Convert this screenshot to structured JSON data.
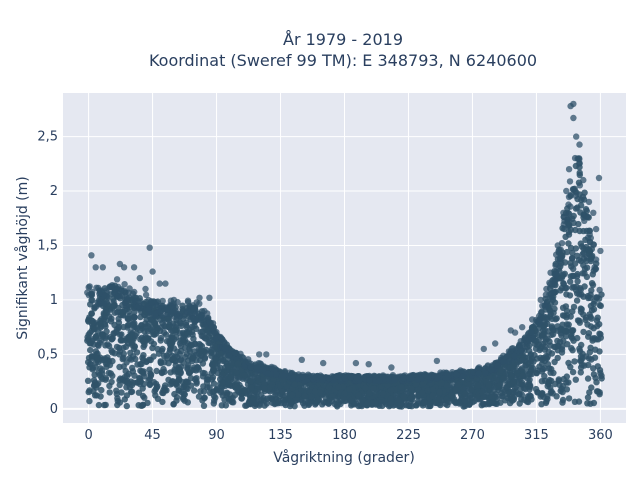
{
  "title_line1": "År 1979 - 2019",
  "title_line2": "Koordinat (Sweref 99 TM): E 348793, N 6240600",
  "colors": {
    "plot_bg": "#e5e8f1",
    "grid": "#ffffff",
    "marker": "#2f5269",
    "text": "#2a3f5f"
  },
  "chart_data": {
    "type": "scatter",
    "title": "År 1979 - 2019 — Koordinat (Sweref 99 TM): E 348793, N 6240600",
    "xlabel": "Vågriktning (grader)",
    "ylabel": "Signifikant våghöjd (m)",
    "xlim": [
      -18,
      378
    ],
    "ylim": [
      -0.13,
      2.9
    ],
    "xticks": [
      0,
      45,
      90,
      135,
      180,
      225,
      270,
      315,
      360
    ],
    "xtick_labels": [
      "0",
      "45",
      "90",
      "135",
      "180",
      "225",
      "270",
      "315",
      "360"
    ],
    "yticks": [
      0,
      0.5,
      1,
      1.5,
      2,
      2.5
    ],
    "ytick_labels": [
      "0",
      "0,5",
      "1",
      "1,5",
      "2",
      "2,5"
    ],
    "grid": true,
    "legend": "none",
    "envelope": {
      "direction_deg": [
        0,
        10,
        20,
        30,
        45,
        60,
        75,
        85,
        90,
        100,
        110,
        120,
        135,
        150,
        180,
        200,
        225,
        250,
        270,
        285,
        300,
        310,
        320,
        330,
        335,
        340,
        345,
        350,
        355,
        360
      ],
      "max_height_m": [
        1.1,
        1.1,
        1.15,
        1.05,
        1.0,
        0.95,
        0.95,
        0.85,
        0.7,
        0.55,
        0.45,
        0.4,
        0.35,
        0.3,
        0.3,
        0.3,
        0.3,
        0.32,
        0.35,
        0.4,
        0.55,
        0.7,
        0.95,
        1.4,
        1.8,
        2.2,
        2.35,
        1.9,
        1.55,
        1.1
      ],
      "min_height_m": 0.02
    },
    "outliers": [
      {
        "x": 2,
        "y": 1.41
      },
      {
        "x": 5,
        "y": 1.3
      },
      {
        "x": 10,
        "y": 1.3
      },
      {
        "x": 22,
        "y": 1.33
      },
      {
        "x": 25,
        "y": 1.3
      },
      {
        "x": 32,
        "y": 1.3
      },
      {
        "x": 36,
        "y": 1.2
      },
      {
        "x": 40,
        "y": 1.1
      },
      {
        "x": 43,
        "y": 1.48
      },
      {
        "x": 45,
        "y": 1.26
      },
      {
        "x": 50,
        "y": 1.15
      },
      {
        "x": 54,
        "y": 1.15
      },
      {
        "x": 60,
        "y": 1.0
      },
      {
        "x": 70,
        "y": 0.98
      },
      {
        "x": 78,
        "y": 1.02
      },
      {
        "x": 85,
        "y": 1.02
      },
      {
        "x": 120,
        "y": 0.5
      },
      {
        "x": 125,
        "y": 0.5
      },
      {
        "x": 150,
        "y": 0.45
      },
      {
        "x": 165,
        "y": 0.42
      },
      {
        "x": 188,
        "y": 0.42
      },
      {
        "x": 197,
        "y": 0.41
      },
      {
        "x": 213,
        "y": 0.38
      },
      {
        "x": 245,
        "y": 0.44
      },
      {
        "x": 278,
        "y": 0.55
      },
      {
        "x": 286,
        "y": 0.6
      },
      {
        "x": 297,
        "y": 0.72
      },
      {
        "x": 300,
        "y": 0.7
      },
      {
        "x": 305,
        "y": 0.75
      },
      {
        "x": 312,
        "y": 0.82
      },
      {
        "x": 318,
        "y": 1.0
      },
      {
        "x": 322,
        "y": 1.1
      },
      {
        "x": 325,
        "y": 1.25
      },
      {
        "x": 330,
        "y": 1.5
      },
      {
        "x": 334,
        "y": 1.8
      },
      {
        "x": 336,
        "y": 2.0
      },
      {
        "x": 338,
        "y": 2.2
      },
      {
        "x": 339,
        "y": 2.78
      },
      {
        "x": 341,
        "y": 2.8
      },
      {
        "x": 341,
        "y": 2.67
      },
      {
        "x": 343,
        "y": 2.5
      },
      {
        "x": 345,
        "y": 2.3
      },
      {
        "x": 348,
        "y": 2.1
      },
      {
        "x": 352,
        "y": 1.9
      },
      {
        "x": 355,
        "y": 1.8
      },
      {
        "x": 357,
        "y": 1.65
      },
      {
        "x": 359,
        "y": 2.12
      },
      {
        "x": 360,
        "y": 1.45
      }
    ]
  }
}
